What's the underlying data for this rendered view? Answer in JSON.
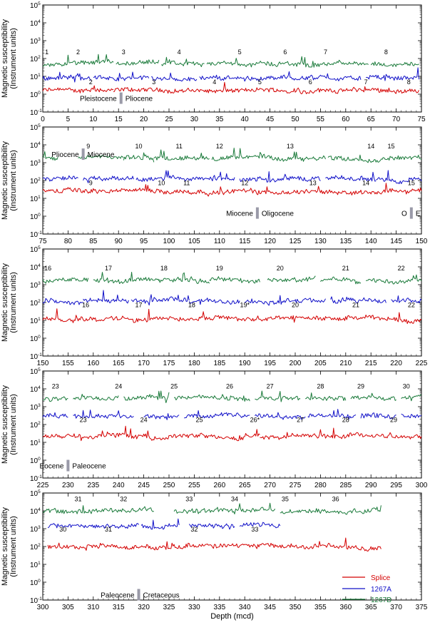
{
  "chart_data": {
    "type": "line",
    "ylabel": [
      "Magnetic susceptibility",
      "(Instrument units)"
    ],
    "xlabel": "Depth (mcd)",
    "yscale": "log",
    "ylim": [
      0.1,
      100000
    ],
    "y_ticks": [
      "10^-1",
      "10^0",
      "10^1",
      "10^2",
      "10^3",
      "10^4",
      "10^5"
    ],
    "series_colors": {
      "splice": "#d40000",
      "a": "#1010c8",
      "b": "#1a7a3a"
    },
    "legend": {
      "placement": "panel-5 lower-right",
      "entries": [
        {
          "name": "Splice",
          "color": "#d40000"
        },
        {
          "name": "1267A",
          "color": "#1010c8"
        },
        {
          "name": "1267B",
          "color": "#1a7a3a"
        }
      ]
    },
    "panels": [
      {
        "xlim": [
          0,
          75
        ],
        "xticks": [
          0,
          5,
          10,
          15,
          20,
          25,
          30,
          35,
          40,
          45,
          50,
          55,
          60,
          65,
          70,
          75
        ],
        "levels": {
          "splice": 1.6,
          "a": 8,
          "b": 50
        },
        "a_segments": [
          [
            0,
            9.5
          ],
          [
            10,
            21
          ],
          [
            21.5,
            30.5
          ],
          [
            31,
            63
          ],
          [
            64,
            71
          ],
          [
            71,
            74.5
          ]
        ],
        "b_segments": [
          [
            0,
            3
          ],
          [
            3,
            14
          ],
          [
            14.5,
            23
          ],
          [
            23.5,
            32
          ],
          [
            32.5,
            64.5
          ],
          [
            65,
            74.5
          ]
        ],
        "splice_segments": [
          [
            0,
            14
          ],
          [
            14,
            30
          ],
          [
            30,
            64
          ],
          [
            64,
            74.5
          ]
        ],
        "core_labels_b": [
          {
            "text": "1",
            "x": 0.8
          },
          {
            "text": "2",
            "x": 7
          },
          {
            "text": "3",
            "x": 16
          },
          {
            "text": "4",
            "x": 27
          },
          {
            "text": "5",
            "x": 39
          },
          {
            "text": "6",
            "x": 48
          },
          {
            "text": "7",
            "x": 56
          },
          {
            "text": "8",
            "x": 68
          }
        ],
        "core_labels_a": [
          {
            "text": "2",
            "x": 9.5
          },
          {
            "text": "3",
            "x": 22
          },
          {
            "text": "4",
            "x": 34
          },
          {
            "text": "5",
            "x": 43
          },
          {
            "text": "6",
            "x": 53
          },
          {
            "text": "7",
            "x": 64
          },
          {
            "text": "8",
            "x": 72.5
          }
        ],
        "boundaries": [
          {
            "left": "Pleistocene",
            "right": "Pliocene",
            "x": 15.5
          }
        ]
      },
      {
        "xlim": [
          75,
          150
        ],
        "xticks": [
          75,
          80,
          85,
          90,
          95,
          100,
          105,
          110,
          115,
          120,
          125,
          130,
          135,
          140,
          145,
          150
        ],
        "levels": {
          "splice": 25,
          "a": 120,
          "b": 1800
        },
        "a_segments": [
          [
            75,
            82
          ],
          [
            83,
            93
          ],
          [
            93.5,
            102
          ],
          [
            102,
            113
          ],
          [
            114,
            130
          ],
          [
            131,
            141
          ],
          [
            141,
            150
          ]
        ],
        "b_segments": [
          [
            75,
            78
          ],
          [
            82,
            91
          ],
          [
            91,
            97
          ],
          [
            97,
            108
          ],
          [
            108.5,
            131
          ],
          [
            131.5,
            142
          ],
          [
            142,
            150
          ]
        ],
        "splice_segments": [
          [
            75,
            150
          ]
        ],
        "core_labels_b": [
          {
            "text": "9",
            "x": 84
          },
          {
            "text": "10",
            "x": 94
          },
          {
            "text": "11",
            "x": 102
          },
          {
            "text": "12",
            "x": 110
          },
          {
            "text": "13",
            "x": 124
          },
          {
            "text": "14",
            "x": 140
          },
          {
            "text": "15",
            "x": 144
          }
        ],
        "core_labels_a": [
          {
            "text": "9",
            "x": 84.5
          },
          {
            "text": "10",
            "x": 98.5
          },
          {
            "text": "11",
            "x": 103.5
          },
          {
            "text": "12",
            "x": 115
          },
          {
            "text": "13",
            "x": 128.5
          },
          {
            "text": "14",
            "x": 139
          },
          {
            "text": "15",
            "x": 148
          }
        ],
        "boundaries": [
          {
            "left": "Pliocene",
            "right": "Miocene",
            "x": 83
          },
          {
            "left": "Miocene",
            "right": "Oligocene",
            "x": 117.5
          },
          {
            "left": "O",
            "right": "E",
            "x": 148
          }
        ]
      },
      {
        "xlim": [
          150,
          225
        ],
        "xticks": [
          150,
          155,
          160,
          165,
          170,
          175,
          180,
          185,
          190,
          195,
          200,
          205,
          210,
          215,
          220,
          225
        ],
        "levels": {
          "splice": 12,
          "a": 120,
          "b": 1800
        },
        "a_segments": [
          [
            150,
            158
          ],
          [
            158,
            167
          ],
          [
            167.5,
            179
          ],
          [
            179,
            189
          ],
          [
            190,
            200
          ],
          [
            200,
            206
          ],
          [
            207,
            218
          ],
          [
            219,
            225
          ]
        ],
        "b_segments": [
          [
            150,
            159
          ],
          [
            160,
            173
          ],
          [
            173,
            183
          ],
          [
            183,
            193
          ],
          [
            194.5,
            204
          ],
          [
            205,
            213
          ],
          [
            214,
            225
          ]
        ],
        "splice_segments": [
          [
            150,
            225
          ]
        ],
        "core_labels_b": [
          {
            "text": "16",
            "x": 151
          },
          {
            "text": "17",
            "x": 163
          },
          {
            "text": "18",
            "x": 174
          },
          {
            "text": "19",
            "x": 185
          },
          {
            "text": "20",
            "x": 197
          },
          {
            "text": "21",
            "x": 210
          },
          {
            "text": "22",
            "x": 221
          }
        ],
        "core_labels_a": [
          {
            "text": "16",
            "x": 158.5
          },
          {
            "text": "17",
            "x": 169
          },
          {
            "text": "18",
            "x": 179.5
          },
          {
            "text": "19*",
            "x": 190
          },
          {
            "text": "20",
            "x": 200
          },
          {
            "text": "21",
            "x": 212
          },
          {
            "text": "22",
            "x": 223
          }
        ],
        "boundaries": []
      },
      {
        "xlim": [
          225,
          300
        ],
        "xticks": [
          225,
          230,
          235,
          240,
          245,
          250,
          255,
          260,
          265,
          270,
          275,
          280,
          285,
          290,
          295,
          300
        ],
        "levels": {
          "splice": 22,
          "a": 300,
          "b": 3000
        },
        "a_segments": [
          [
            225,
            230
          ],
          [
            231,
            243
          ],
          [
            245,
            252
          ],
          [
            253,
            266
          ],
          [
            267,
            277
          ],
          [
            277.5,
            287
          ],
          [
            288,
            295
          ],
          [
            296,
            300
          ]
        ],
        "b_segments": [
          [
            225,
            230
          ],
          [
            231,
            240
          ],
          [
            241,
            250
          ],
          [
            251,
            266
          ],
          [
            267,
            276
          ],
          [
            277,
            285
          ],
          [
            286,
            295
          ],
          [
            296,
            300
          ]
        ],
        "splice_segments": [
          [
            225,
            268
          ],
          [
            268,
            300
          ]
        ],
        "core_labels_b": [
          {
            "text": "23",
            "x": 227.5
          },
          {
            "text": "24",
            "x": 240
          },
          {
            "text": "25",
            "x": 251
          },
          {
            "text": "26",
            "x": 262
          },
          {
            "text": "27",
            "x": 270
          },
          {
            "text": "28",
            "x": 280
          },
          {
            "text": "29",
            "x": 288
          },
          {
            "text": "30",
            "x": 297
          }
        ],
        "core_labels_a": [
          {
            "text": "23",
            "x": 233
          },
          {
            "text": "24",
            "x": 245
          },
          {
            "text": "25",
            "x": 256
          },
          {
            "text": "26*",
            "x": 267
          },
          {
            "text": "27",
            "x": 276
          },
          {
            "text": "28",
            "x": 285
          },
          {
            "text": "29",
            "x": 294.5
          }
        ],
        "boundaries": [
          {
            "left": "Eocene",
            "right": "Paleocene",
            "x": 230
          }
        ]
      },
      {
        "xlim": [
          300,
          375
        ],
        "xticks": [
          300,
          305,
          310,
          315,
          320,
          325,
          330,
          335,
          340,
          345,
          350,
          355,
          360,
          365,
          370,
          375
        ],
        "levels": {
          "splice": 100,
          "a": 1500,
          "b": 10000
        },
        "a_segments": [
          [
            301,
            319
          ],
          [
            319.5,
            327
          ],
          [
            329,
            338
          ],
          [
            339,
            347
          ]
        ],
        "b_segments": [
          [
            300,
            322
          ],
          [
            326,
            346
          ],
          [
            347,
            367
          ]
        ],
        "splice_segments": [
          [
            301,
            367
          ]
        ],
        "core_labels_b": [
          {
            "text": "31",
            "x": 307
          },
          {
            "text": "32",
            "x": 316
          },
          {
            "text": "33",
            "x": 329
          },
          {
            "text": "34",
            "x": 338
          },
          {
            "text": "35",
            "x": 348
          },
          {
            "text": "36",
            "x": 358
          }
        ],
        "core_labels_a": [
          {
            "text": "30",
            "x": 304
          },
          {
            "text": "31",
            "x": 313
          },
          {
            "text": "32",
            "x": 330
          },
          {
            "text": "33",
            "x": 342
          }
        ],
        "boundaries": [
          {
            "left": "Paleocene",
            "right": "Cretaceous",
            "x": 319
          }
        ]
      }
    ]
  }
}
